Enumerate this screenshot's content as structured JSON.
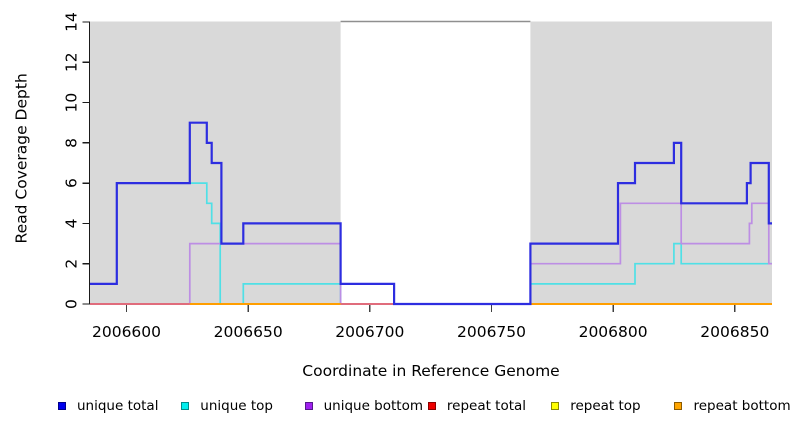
{
  "y_axis": {
    "label": "Read Coverage Depth",
    "tick_labels": [
      "0",
      "2",
      "4",
      "6",
      "8",
      "10",
      "12",
      "14"
    ]
  },
  "x_axis": {
    "label": "Coordinate in Reference Genome",
    "tick_labels": [
      "2006600",
      "2006650",
      "2006700",
      "2006750",
      "2006800",
      "2006850"
    ]
  },
  "plot": {
    "shade_color": "#d9d9d9",
    "shaded_regions": [
      {
        "from": 2006585,
        "to": 2006688
      },
      {
        "from": 2006766,
        "to": 2006865.3
      }
    ],
    "gap": {
      "from": 2006688,
      "to": 2006766
    },
    "gap_top_line_color": "#8f8f8f",
    "axis_color": "#1a1a1a",
    "tick_color": "#404040",
    "text_color": "#000000"
  },
  "chart_data": {
    "type": "step-line",
    "title": "",
    "xlabel": "Coordinate in Reference Genome",
    "ylabel": "Read Coverage Depth",
    "xlim": [
      2006585,
      2006865.3
    ],
    "ylim": [
      0,
      14
    ],
    "x_ticks": [
      2006600,
      2006650,
      2006700,
      2006750,
      2006800,
      2006850
    ],
    "y_ticks": [
      0,
      2,
      4,
      6,
      8,
      10,
      12,
      14
    ],
    "grid": false,
    "legend_position": "bottom",
    "series": [
      {
        "name": "repeat total",
        "color": "#ff0000",
        "line_width": 1.5,
        "steps": [
          [
            2006585,
            0
          ]
        ]
      },
      {
        "name": "repeat top",
        "color": "#ffff00",
        "line_width": 1.5,
        "steps": [
          [
            2006585,
            0
          ]
        ]
      },
      {
        "name": "repeat bottom",
        "color": "#ff9e00",
        "line_width": 1.7,
        "steps": [
          [
            2006585,
            0
          ]
        ]
      },
      {
        "name": "unique top",
        "color": "#4fe0e6",
        "line_width": 1.7,
        "steps": [
          [
            2006585,
            1
          ],
          [
            2006596,
            6
          ],
          [
            2006633,
            5
          ],
          [
            2006635,
            4
          ],
          [
            2006638.5,
            0
          ],
          [
            2006648,
            1
          ],
          [
            2006688,
            0
          ],
          [
            2006766,
            1
          ],
          [
            2006809,
            2
          ],
          [
            2006825,
            3
          ],
          [
            2006828,
            2
          ]
        ]
      },
      {
        "name": "unique bottom",
        "color": "#bd8ee4",
        "line_width": 1.7,
        "steps": [
          [
            2006585,
            0
          ],
          [
            2006626,
            3
          ],
          [
            2006688,
            0
          ],
          [
            2006766,
            2
          ],
          [
            2006803,
            5
          ],
          [
            2006828,
            3
          ],
          [
            2006856,
            4
          ],
          [
            2006857,
            5
          ],
          [
            2006864,
            2
          ]
        ]
      },
      {
        "name": "unique total",
        "color": "#2d2de0",
        "line_width": 2.2,
        "steps": [
          [
            2006585,
            1
          ],
          [
            2006596,
            6
          ],
          [
            2006626,
            9
          ],
          [
            2006633,
            8
          ],
          [
            2006635,
            7
          ],
          [
            2006639,
            3
          ],
          [
            2006648,
            4
          ],
          [
            2006688,
            1
          ],
          [
            2006710,
            0
          ],
          [
            2006766,
            3
          ],
          [
            2006802,
            6
          ],
          [
            2006809,
            7
          ],
          [
            2006825,
            8
          ],
          [
            2006828,
            5
          ],
          [
            2006855,
            6
          ],
          [
            2006856.5,
            7
          ],
          [
            2006864,
            4
          ]
        ]
      }
    ],
    "zero_line_visible_segments": [
      {
        "from": 2006585,
        "to": 2006626,
        "color": "#e06c7c"
      },
      {
        "from": 2006626,
        "to": 2006688,
        "color": "#ff9e00"
      },
      {
        "from": 2006688,
        "to": 2006710,
        "color": "#e06c7c"
      },
      {
        "from": 2006766,
        "to": 2006865.3,
        "color": "#ff9e00"
      }
    ]
  },
  "legend": {
    "items": [
      {
        "label": "unique total",
        "fill": "#0000ee",
        "border": "#00008b"
      },
      {
        "label": "unique top",
        "fill": "#00eeee",
        "border": "#008b8b"
      },
      {
        "label": "unique bottom",
        "fill": "#a020f0",
        "border": "#551a8b"
      },
      {
        "label": "repeat total",
        "fill": "#ee0000",
        "border": "#8b0000"
      },
      {
        "label": "repeat top",
        "fill": "#ffff00",
        "border": "#8b8b00"
      },
      {
        "label": "repeat bottom",
        "fill": "#ffa500",
        "border": "#8b5a00"
      }
    ]
  }
}
